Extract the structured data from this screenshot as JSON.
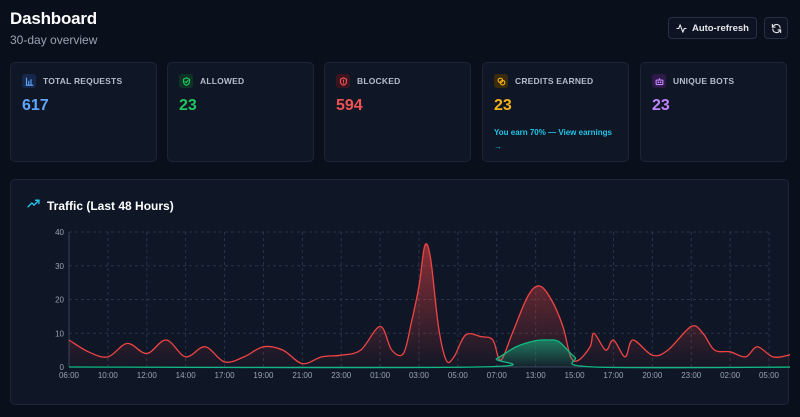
{
  "header": {
    "title": "Dashboard",
    "subtitle": "30-day overview"
  },
  "toolbar": {
    "auto_refresh_label": "Auto-refresh",
    "refresh_icon": "refresh-icon",
    "activity_icon": "activity-icon"
  },
  "stats": [
    {
      "label": "TOTAL REQUESTS",
      "value": "617",
      "color": "#60a5fa",
      "icon": "bar-chart-icon"
    },
    {
      "label": "ALLOWED",
      "value": "23",
      "color": "#22c55e",
      "icon": "shield-check-icon"
    },
    {
      "label": "BLOCKED",
      "value": "594",
      "color": "#f05252",
      "icon": "shield-x-icon"
    },
    {
      "label": "CREDITS EARNED",
      "value": "23",
      "color": "#f5b21a",
      "icon": "coins-icon",
      "link": "You earn 70% — View earnings →"
    },
    {
      "label": "UNIQUE BOTS",
      "value": "23",
      "color": "#c084fc",
      "icon": "bot-icon"
    }
  ],
  "traffic": {
    "title": "Traffic (Last 48 Hours)",
    "icon": "trending-up-icon"
  },
  "chart_data": {
    "type": "area",
    "title": "Traffic (Last 48 Hours)",
    "ylim": [
      0,
      40
    ],
    "yticks": [
      0,
      10,
      20,
      30,
      40
    ],
    "grid": true,
    "x_ticks": [
      "06:00",
      "10:00",
      "12:00",
      "14:00",
      "17:00",
      "19:00",
      "21:00",
      "23:00",
      "01:00",
      "03:00",
      "05:00",
      "07:00",
      "13:00",
      "15:00",
      "17:00",
      "20:00",
      "23:00",
      "02:00",
      "05:00"
    ],
    "series": [
      {
        "color": "#ef4444",
        "points": [
          [
            0,
            8
          ],
          [
            0.5,
            4.5
          ],
          [
            1,
            3
          ],
          [
            1.5,
            7
          ],
          [
            2,
            4
          ],
          [
            2.5,
            8
          ],
          [
            3,
            3
          ],
          [
            3.5,
            6
          ],
          [
            4,
            1.5
          ],
          [
            4.5,
            3
          ],
          [
            5,
            6
          ],
          [
            5.5,
            5
          ],
          [
            6,
            1
          ],
          [
            6.5,
            3
          ],
          [
            7,
            3.5
          ],
          [
            7.5,
            5
          ],
          [
            8,
            12
          ],
          [
            8.3,
            5
          ],
          [
            8.6,
            4
          ],
          [
            8.8,
            13
          ],
          [
            9,
            24
          ],
          [
            9.15,
            36
          ],
          [
            9.3,
            32
          ],
          [
            9.5,
            12
          ],
          [
            9.7,
            2
          ],
          [
            9.9,
            3
          ],
          [
            10.2,
            9.5
          ],
          [
            10.6,
            9
          ],
          [
            10.9,
            8
          ],
          [
            11.1,
            2
          ],
          [
            11.4,
            10
          ],
          [
            11.8,
            21
          ],
          [
            12.1,
            24
          ],
          [
            12.4,
            20
          ],
          [
            12.7,
            12
          ],
          [
            12.9,
            3
          ],
          [
            13.1,
            2
          ],
          [
            13.4,
            6
          ],
          [
            13.5,
            10
          ],
          [
            13.8,
            5
          ],
          [
            14,
            8
          ],
          [
            14.3,
            3
          ],
          [
            14.5,
            8
          ],
          [
            15,
            3.5
          ],
          [
            15.4,
            5
          ],
          [
            16,
            12
          ],
          [
            16.3,
            10
          ],
          [
            16.6,
            5
          ],
          [
            17,
            4.5
          ],
          [
            17.4,
            3
          ],
          [
            17.7,
            6
          ],
          [
            18.1,
            3
          ],
          [
            18.5,
            3.5
          ],
          [
            18.8,
            5
          ],
          [
            19,
            0.5
          ]
        ]
      },
      {
        "color": "#10b981",
        "points": [
          [
            0,
            0
          ],
          [
            10.5,
            0
          ],
          [
            11,
            2.5
          ],
          [
            11.5,
            6
          ],
          [
            12,
            7.8
          ],
          [
            12.3,
            8
          ],
          [
            12.6,
            7.5
          ],
          [
            13,
            3
          ],
          [
            13.5,
            0
          ],
          [
            19,
            0
          ]
        ]
      }
    ]
  }
}
